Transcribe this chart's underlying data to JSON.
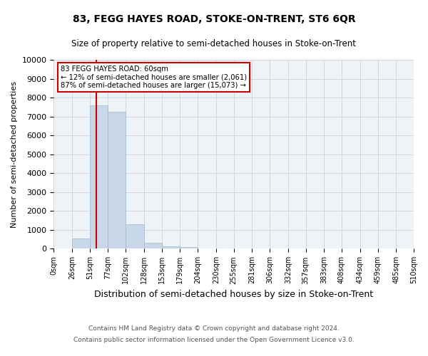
{
  "title": "83, FEGG HAYES ROAD, STOKE-ON-TRENT, ST6 6QR",
  "subtitle": "Size of property relative to semi-detached houses in Stoke-on-Trent",
  "xlabel": "Distribution of semi-detached houses by size in Stoke-on-Trent",
  "ylabel": "Number of semi-detached properties",
  "footnote1": "Contains HM Land Registry data © Crown copyright and database right 2024.",
  "footnote2": "Contains public sector information licensed under the Open Government Licence v3.0.",
  "annotation_title": "83 FEGG HAYES ROAD: 60sqm",
  "annotation_line2": "← 12% of semi-detached houses are smaller (2,061)",
  "annotation_line3": "87% of semi-detached houses are larger (15,073) →",
  "property_size": 60,
  "bin_edges": [
    0,
    26,
    51,
    77,
    102,
    128,
    153,
    179,
    204,
    230,
    255,
    281,
    306,
    332,
    357,
    383,
    408,
    434,
    459,
    485,
    510
  ],
  "bin_counts": [
    0,
    550,
    7600,
    7250,
    1300,
    300,
    130,
    100,
    0,
    0,
    0,
    0,
    0,
    0,
    0,
    0,
    0,
    0,
    0,
    0
  ],
  "bar_color": "#c8d8e8",
  "bar_edge_color": "#a0b8d0",
  "vline_color": "#cc0000",
  "annotation_box_color": "#cc0000",
  "background_color": "#ffffff",
  "grid_color": "#cccccc",
  "ylim": [
    0,
    10000
  ],
  "yticks": [
    0,
    1000,
    2000,
    3000,
    4000,
    5000,
    6000,
    7000,
    8000,
    9000,
    10000
  ],
  "tick_labels": [
    "0sqm",
    "26sqm",
    "51sqm",
    "77sqm",
    "102sqm",
    "128sqm",
    "153sqm",
    "179sqm",
    "204sqm",
    "230sqm",
    "255sqm",
    "281sqm",
    "306sqm",
    "332sqm",
    "357sqm",
    "383sqm",
    "408sqm",
    "434sqm",
    "459sqm",
    "485sqm",
    "510sqm"
  ]
}
